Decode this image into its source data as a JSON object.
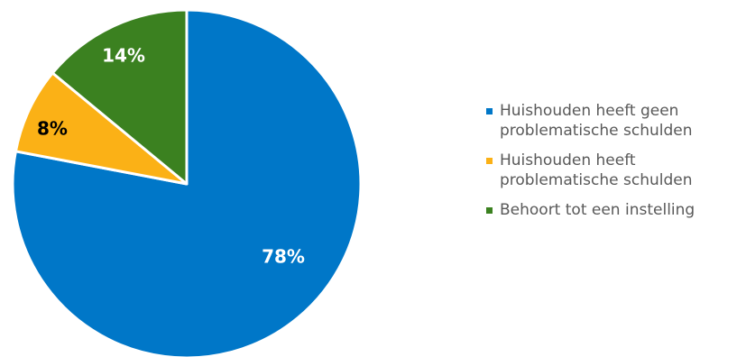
{
  "chart_data": {
    "type": "pie",
    "title": "",
    "start_angle_deg": 0,
    "direction": "clockwise",
    "slices": [
      {
        "label": "Huishouden heeft geen problematische schulden",
        "value": 78,
        "value_label": "78%",
        "color": "#0077C8",
        "label_color": "#ffffff"
      },
      {
        "label": "Huishouden heeft problematische schulden",
        "value": 8,
        "value_label": "8%",
        "color": "#FBB116",
        "label_color": "#000000"
      },
      {
        "label": "Behoort tot een instelling",
        "value": 14,
        "value_label": "14%",
        "color": "#3B8120",
        "label_color": "#ffffff"
      }
    ],
    "legend_position": "right"
  },
  "legend": {
    "items": [
      {
        "line1": "Huishouden heeft geen",
        "line2": "problematische schulden",
        "color": "#0077C8"
      },
      {
        "line1": "Huishouden heeft",
        "line2": "problematische schulden",
        "color": "#FBB116"
      },
      {
        "line1": "Behoort tot een instelling",
        "line2": "",
        "color": "#3B8120"
      }
    ]
  }
}
